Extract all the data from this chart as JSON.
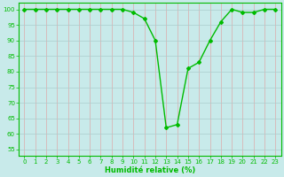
{
  "x": [
    0,
    1,
    2,
    3,
    4,
    5,
    6,
    7,
    8,
    9,
    10,
    11,
    12,
    13,
    14,
    15,
    16,
    17,
    18,
    19,
    20,
    21,
    22,
    23
  ],
  "y": [
    100,
    100,
    100,
    100,
    100,
    100,
    100,
    100,
    100,
    100,
    99,
    97,
    90,
    62,
    63,
    81,
    83,
    90,
    96,
    100,
    99,
    99,
    100,
    100
  ],
  "line_color": "#00bb00",
  "marker_color": "#00bb00",
  "bg_color": "#c8eaea",
  "hgrid_color": "#aacccc",
  "vgrid_color": "#ddaaaa",
  "ylim": [
    53,
    102
  ],
  "yticks": [
    55,
    60,
    65,
    70,
    75,
    80,
    85,
    90,
    95,
    100
  ],
  "xlim": [
    -0.5,
    23.5
  ],
  "xticks": [
    0,
    1,
    2,
    3,
    4,
    5,
    6,
    7,
    8,
    9,
    10,
    11,
    12,
    13,
    14,
    15,
    16,
    17,
    18,
    19,
    20,
    21,
    22,
    23
  ],
  "xlabel": "Humidité relative (%)",
  "xlabel_color": "#00bb00",
  "tick_color": "#00bb00",
  "axis_color": "#00bb00"
}
